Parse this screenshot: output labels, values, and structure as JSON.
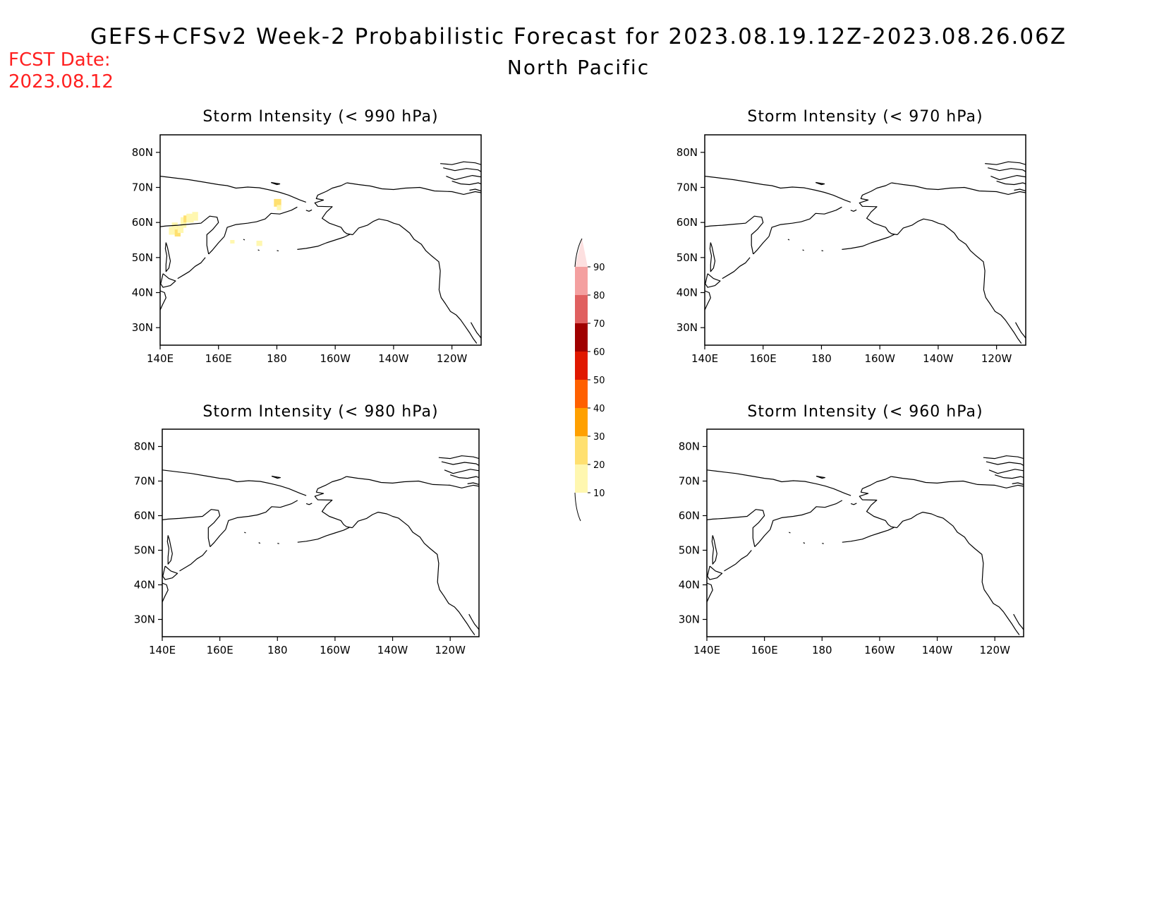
{
  "header": {
    "title": "GEFS+CFSv2 Week-2 Probabilistic Forecast for 2023.08.19.12Z-2023.08.26.06Z",
    "subtitle": "North Pacific",
    "fcst_label": "FCST Date:",
    "fcst_date": "2023.08.12"
  },
  "panels": [
    {
      "title": "Storm Intensity (< 990 hPa)",
      "has_data": true
    },
    {
      "title": "Storm Intensity (< 970 hPa)",
      "has_data": false
    },
    {
      "title": "Storm Intensity (< 980 hPa)",
      "has_data": false
    },
    {
      "title": "Storm Intensity (< 960 hPa)",
      "has_data": false
    }
  ],
  "axes": {
    "lon_labels": [
      "140E",
      "160E",
      "180",
      "160W",
      "140W",
      "120W"
    ],
    "lat_labels": [
      "80N",
      "70N",
      "60N",
      "50N",
      "40N",
      "30N"
    ]
  },
  "colorbar": {
    "labels": [
      "90",
      "80",
      "70",
      "60",
      "50",
      "40",
      "30",
      "20",
      "10"
    ],
    "colors": [
      "#fde0e0",
      "#f4a0a0",
      "#e06060",
      "#a00000",
      "#e01800",
      "#ff6000",
      "#ffa000",
      "#ffe070",
      "#fff7b0"
    ]
  },
  "shading_colors": {
    "low": "#fff7b0",
    "mid": "#ffe070"
  }
}
